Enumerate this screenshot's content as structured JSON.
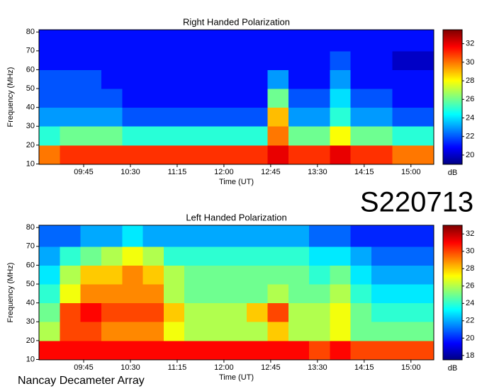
{
  "label": "S220713",
  "footer": "Nancay Decameter Array",
  "chart_data": [
    {
      "type": "heatmap",
      "title": "Right Handed Polarization",
      "xlabel": "Time (UT)",
      "ylabel": "Frequency (MHz)",
      "colorbar_label": "dB",
      "colormap": "jet",
      "xlim": [
        542,
        922
      ],
      "ylim": [
        9.8,
        81.2
      ],
      "xticks": [
        {
          "value": 585,
          "label": "09:45"
        },
        {
          "value": 630,
          "label": "10:30"
        },
        {
          "value": 675,
          "label": "11:15"
        },
        {
          "value": 720,
          "label": "12:00"
        },
        {
          "value": 765,
          "label": "12:45"
        },
        {
          "value": 810,
          "label": "13:30"
        },
        {
          "value": 855,
          "label": "14:15"
        },
        {
          "value": 900,
          "label": "15:00"
        }
      ],
      "yticks": [
        10,
        20,
        30,
        40,
        50,
        60,
        70,
        80
      ],
      "zlim": [
        19,
        33.5
      ],
      "zticks": [
        20,
        22,
        24,
        26,
        28,
        30,
        32
      ],
      "x": [
        542,
        562,
        582,
        602,
        622,
        642,
        662,
        682,
        702,
        722,
        742,
        762,
        782,
        802,
        822,
        842,
        862,
        882,
        902,
        922
      ],
      "y": [
        9.8,
        20,
        30,
        40,
        50,
        60,
        70,
        81.2
      ],
      "z": [
        [
          30,
          31,
          31,
          31,
          31,
          31,
          31,
          31,
          31,
          31,
          31,
          32,
          31,
          31,
          32,
          31,
          31,
          30,
          30
        ],
        [
          25,
          26,
          26,
          26,
          25,
          25,
          25,
          25,
          25,
          25,
          25,
          30,
          26,
          26,
          28,
          26,
          26,
          25,
          25
        ],
        [
          23,
          23,
          23,
          23,
          22,
          22,
          22,
          22,
          22,
          22,
          22,
          29,
          23,
          23,
          25,
          23,
          23,
          22,
          22
        ],
        [
          22,
          22,
          22,
          22,
          21,
          21,
          21,
          21,
          21,
          21,
          21,
          26,
          22,
          22,
          24,
          22,
          22,
          21,
          21
        ],
        [
          22,
          22,
          22,
          21,
          21,
          21,
          21,
          21,
          21,
          21,
          21,
          23,
          21,
          21,
          23,
          21,
          21,
          21,
          21
        ],
        [
          21,
          21,
          21,
          21,
          21,
          21,
          21,
          21,
          21,
          21,
          21,
          21,
          21,
          21,
          22,
          21,
          21,
          20,
          20
        ],
        [
          21,
          21,
          21,
          21,
          21,
          21,
          21,
          21,
          21,
          21,
          21,
          21,
          21,
          21,
          21,
          21,
          21,
          21,
          21
        ]
      ]
    },
    {
      "type": "heatmap",
      "title": "Left Handed Polarization",
      "xlabel": "Time (UT)",
      "ylabel": "Frequency (MHz)",
      "colorbar_label": "dB",
      "colormap": "jet",
      "xlim": [
        542,
        922
      ],
      "ylim": [
        9.8,
        81.2
      ],
      "xticks": [
        {
          "value": 585,
          "label": "09:45"
        },
        {
          "value": 630,
          "label": "10:30"
        },
        {
          "value": 675,
          "label": "11:15"
        },
        {
          "value": 720,
          "label": "12:00"
        },
        {
          "value": 765,
          "label": "12:45"
        },
        {
          "value": 810,
          "label": "13:30"
        },
        {
          "value": 855,
          "label": "14:15"
        },
        {
          "value": 900,
          "label": "15:00"
        }
      ],
      "yticks": [
        10,
        20,
        30,
        40,
        50,
        60,
        70,
        80
      ],
      "zlim": [
        17.5,
        33
      ],
      "zticks": [
        18,
        20,
        22,
        24,
        26,
        28,
        30,
        32
      ],
      "x": [
        542,
        562,
        582,
        602,
        622,
        642,
        662,
        682,
        702,
        722,
        742,
        762,
        782,
        802,
        822,
        842,
        862,
        882,
        902,
        922
      ],
      "y": [
        9.8,
        20,
        30,
        40,
        50,
        60,
        70,
        81.2
      ],
      "z": [
        [
          31,
          31,
          31,
          31,
          31,
          31,
          31,
          31,
          31,
          31,
          31,
          31,
          31,
          30,
          31,
          30,
          30,
          30,
          30
        ],
        [
          26,
          30,
          30,
          29,
          29,
          29,
          27,
          26,
          26,
          26,
          26,
          28,
          26,
          26,
          27,
          25,
          25,
          25,
          25
        ],
        [
          25,
          30,
          31,
          30,
          30,
          30,
          28,
          26,
          26,
          26,
          28,
          30,
          26,
          26,
          27,
          25,
          24,
          24,
          24
        ],
        [
          24,
          27,
          29,
          29,
          29,
          29,
          26,
          25,
          25,
          25,
          25,
          26,
          25,
          25,
          26,
          24,
          23,
          23,
          23
        ],
        [
          23,
          26,
          28,
          28,
          29,
          28,
          26,
          25,
          25,
          25,
          25,
          25,
          25,
          24,
          25,
          23,
          22,
          22,
          22
        ],
        [
          22,
          24,
          25,
          26,
          27,
          26,
          24,
          24,
          24,
          24,
          24,
          24,
          24,
          23,
          23,
          22,
          21,
          21,
          21
        ],
        [
          21,
          21,
          22,
          22,
          23,
          22,
          22,
          22,
          22,
          22,
          22,
          22,
          22,
          21,
          21,
          20,
          20,
          20,
          20
        ]
      ]
    }
  ]
}
